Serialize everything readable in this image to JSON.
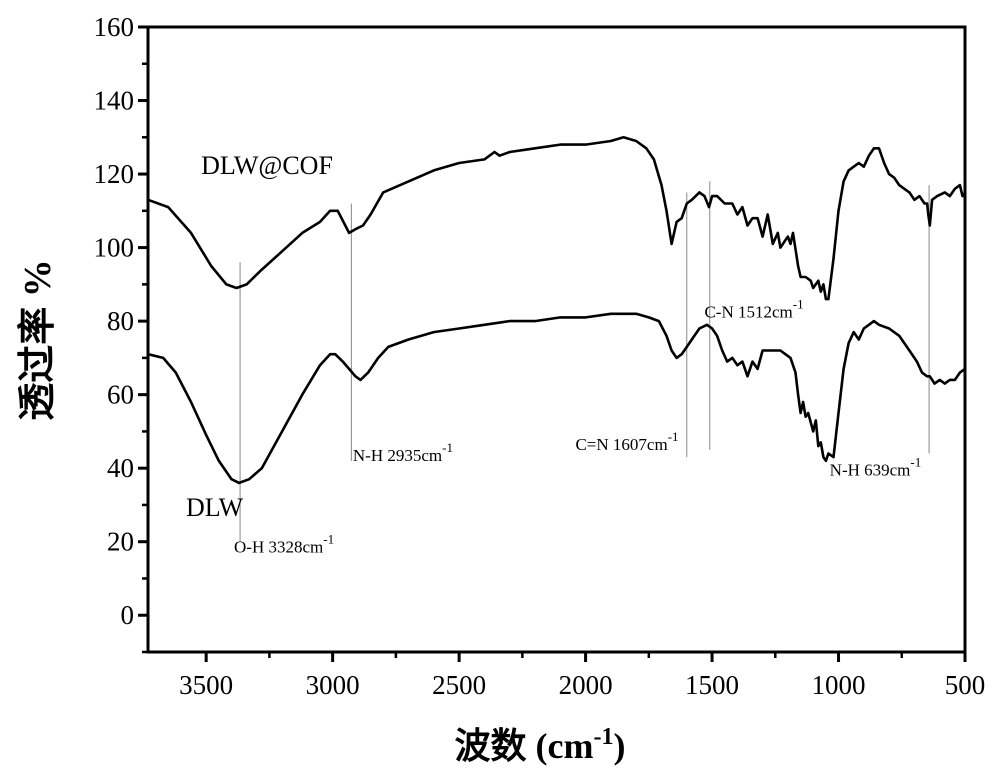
{
  "chart_data": {
    "type": "line",
    "title": "",
    "xlabel": "波数 (cm",
    "xlabel_sup": "-1",
    "xlabel_end": ")",
    "ylabel": "透过率 %",
    "xlim": [
      3730,
      500
    ],
    "ylim": [
      -10,
      160
    ],
    "xticks": [
      3500,
      3000,
      2500,
      2000,
      1500,
      1000,
      500
    ],
    "yticks": [
      0,
      20,
      40,
      60,
      80,
      100,
      120,
      140,
      160
    ],
    "grid": false,
    "series": [
      {
        "name": "DLW@COF",
        "label_at": [
          3520,
          120
        ],
        "x": [
          3730,
          3650,
          3560,
          3480,
          3420,
          3380,
          3340,
          3280,
          3200,
          3120,
          3050,
          3010,
          2980,
          2950,
          2935,
          2910,
          2880,
          2850,
          2800,
          2700,
          2600,
          2500,
          2400,
          2360,
          2340,
          2300,
          2200,
          2100,
          2000,
          1900,
          1850,
          1800,
          1760,
          1730,
          1700,
          1680,
          1660,
          1640,
          1620,
          1600,
          1580,
          1550,
          1530,
          1512,
          1500,
          1480,
          1450,
          1420,
          1400,
          1380,
          1360,
          1340,
          1320,
          1300,
          1280,
          1260,
          1240,
          1230,
          1210,
          1200,
          1190,
          1180,
          1160,
          1150,
          1130,
          1110,
          1100,
          1080,
          1070,
          1060,
          1050,
          1040,
          1020,
          1000,
          980,
          960,
          940,
          920,
          900,
          880,
          860,
          840,
          820,
          800,
          780,
          760,
          740,
          720,
          700,
          680,
          660,
          650,
          645,
          639,
          630,
          610,
          580,
          560,
          540,
          520,
          510,
          500
        ],
        "y": [
          113,
          111,
          104,
          95,
          90,
          89,
          90,
          94,
          99,
          104,
          107,
          110,
          110,
          106,
          104,
          105,
          106,
          109,
          115,
          118,
          121,
          123,
          124,
          126,
          125,
          126,
          127,
          128,
          128,
          129,
          130,
          129,
          127,
          124,
          117,
          110,
          101,
          107,
          108,
          112,
          113,
          115,
          114,
          111,
          114,
          114,
          112,
          112,
          109,
          111,
          106,
          108,
          108,
          103,
          109,
          101,
          104,
          100,
          102,
          103,
          101,
          104,
          95,
          92,
          92,
          91,
          89,
          91,
          88,
          90,
          86,
          86,
          97,
          110,
          118,
          121,
          122,
          123,
          122,
          125,
          127,
          127,
          123,
          120,
          119,
          117,
          116,
          115,
          113,
          114,
          112,
          112,
          109,
          106,
          113,
          114,
          115,
          114,
          116,
          117,
          114,
          115
        ]
      },
      {
        "name": "DLW",
        "label_at": [
          3580,
          27
        ],
        "x": [
          3730,
          3670,
          3620,
          3560,
          3500,
          3450,
          3400,
          3370,
          3330,
          3280,
          3200,
          3120,
          3050,
          3010,
          2990,
          2960,
          2935,
          2910,
          2890,
          2860,
          2820,
          2780,
          2700,
          2600,
          2500,
          2400,
          2300,
          2200,
          2100,
          2000,
          1900,
          1850,
          1800,
          1750,
          1710,
          1680,
          1660,
          1640,
          1620,
          1600,
          1580,
          1550,
          1520,
          1500,
          1480,
          1460,
          1440,
          1420,
          1400,
          1380,
          1360,
          1340,
          1320,
          1300,
          1260,
          1230,
          1210,
          1190,
          1170,
          1160,
          1150,
          1140,
          1130,
          1120,
          1100,
          1090,
          1080,
          1070,
          1060,
          1050,
          1040,
          1020,
          1000,
          980,
          960,
          940,
          920,
          900,
          880,
          860,
          840,
          800,
          760,
          720,
          690,
          670,
          650,
          639,
          620,
          600,
          580,
          560,
          540,
          520,
          500
        ],
        "y": [
          71,
          70,
          66,
          58,
          49,
          42,
          37,
          36,
          37,
          40,
          50,
          60,
          68,
          71,
          71,
          69,
          67,
          65,
          64,
          66,
          70,
          73,
          75,
          77,
          78,
          79,
          80,
          80,
          81,
          81,
          82,
          82,
          82,
          81,
          80,
          76,
          72,
          70,
          71,
          73,
          75,
          78,
          79,
          78,
          76,
          72,
          69,
          70,
          68,
          69,
          65,
          69,
          67,
          72,
          72,
          72,
          71,
          70,
          66,
          60,
          55,
          58,
          54,
          55,
          50,
          53,
          46,
          47,
          43,
          42,
          44,
          43,
          55,
          67,
          74,
          77,
          75,
          78,
          79,
          80,
          79,
          78,
          76,
          72,
          69,
          66,
          65,
          65,
          63,
          64,
          63,
          64,
          64,
          66,
          67
        ]
      }
    ],
    "annotations": [
      {
        "text": "O-H 3328cm",
        "sup": "-1",
        "line_x": 3366,
        "line_y": [
          96,
          20
        ],
        "label_at": [
          3390,
          17
        ],
        "anchor": "start"
      },
      {
        "text": "N-H 2935cm",
        "sup": "-1",
        "line_x": 2926,
        "line_y": [
          112,
          42
        ],
        "label_at": [
          2920,
          42
        ],
        "anchor": "start"
      },
      {
        "text": "C=N 1607cm",
        "sup": "-1",
        "line_x": 1600,
        "line_y": [
          115,
          43
        ],
        "label_at": [
          2040,
          45
        ],
        "anchor": "start"
      },
      {
        "text": "C-N 1512cm",
        "sup": "-1",
        "line_x": 1509,
        "line_y": [
          118,
          45
        ],
        "label_at": [
          1530,
          81
        ],
        "anchor": "start"
      },
      {
        "text": "N-H 639cm",
        "sup": "-1",
        "line_x": 642,
        "line_y": [
          117,
          44
        ],
        "label_at": [
          1035,
          38
        ],
        "anchor": "start"
      }
    ]
  }
}
